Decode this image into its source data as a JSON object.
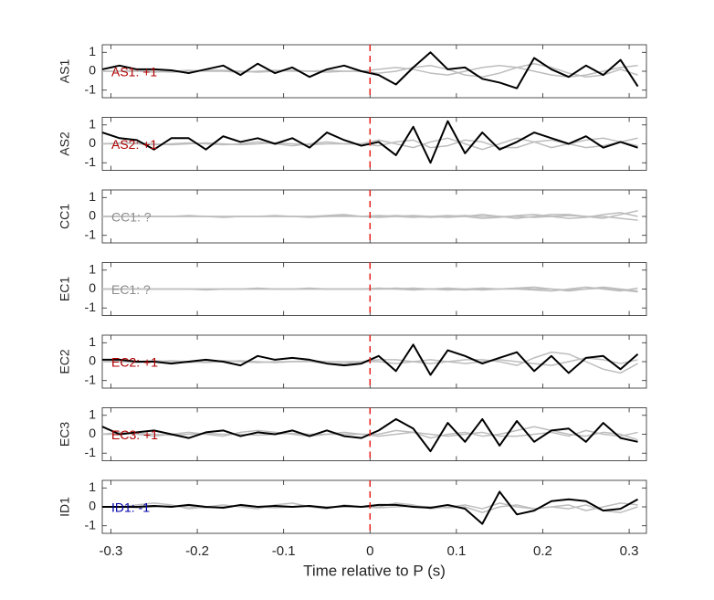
{
  "chart_data": [
    {
      "type": "line",
      "ylabel": "AS1",
      "annotation": {
        "text": "AS1: +1",
        "color": "#b00000"
      },
      "xlim": [
        -0.31,
        0.32
      ],
      "ylim": [
        -1.4,
        1.4
      ],
      "xticks": [
        -0.3,
        -0.2,
        -0.1,
        0,
        0.1,
        0.2,
        0.3
      ],
      "yticks": [
        -1,
        0,
        1
      ],
      "vline": {
        "x": 0,
        "color": "#e8201a"
      },
      "x": [
        -0.31,
        -0.29,
        -0.27,
        -0.25,
        -0.23,
        -0.21,
        -0.19,
        -0.17,
        -0.15,
        -0.13,
        -0.11,
        -0.09,
        -0.07,
        -0.05,
        -0.03,
        -0.01,
        0.01,
        0.03,
        0.05,
        0.07,
        0.09,
        0.11,
        0.13,
        0.15,
        0.17,
        0.19,
        0.21,
        0.23,
        0.25,
        0.27,
        0.29,
        0.31
      ],
      "series": [
        {
          "color": "#bdbdbd",
          "values": [
            0,
            0,
            0.05,
            0,
            -0.05,
            0,
            0.05,
            0.05,
            0,
            -0.05,
            0,
            0.05,
            0,
            -0.05,
            0,
            0,
            0.1,
            0.2,
            0.1,
            -0.1,
            -0.2,
            0,
            0.2,
            0.3,
            0.2,
            0,
            -0.2,
            -0.3,
            -0.2,
            0,
            0.2,
            0.3
          ]
        },
        {
          "color": "#bdbdbd",
          "values": [
            0,
            0,
            0,
            -0.05,
            0,
            0.05,
            0,
            0,
            -0.05,
            0,
            0.05,
            0,
            0,
            0.05,
            0,
            0,
            -0.1,
            0,
            0.2,
            0.3,
            0.1,
            -0.2,
            -0.3,
            -0.1,
            0.2,
            0.4,
            0.2,
            -0.1,
            -0.3,
            -0.2,
            0.1,
            -0.2
          ]
        },
        {
          "color": "#000000",
          "values": [
            0.1,
            0.3,
            0.1,
            0.1,
            0.05,
            -0.1,
            0.1,
            0.3,
            -0.2,
            0.4,
            -0.1,
            0.2,
            -0.3,
            0.1,
            0.3,
            0,
            -0.2,
            -0.7,
            0.2,
            1.0,
            0.1,
            0.2,
            -0.4,
            -0.6,
            -0.9,
            0.7,
            0.1,
            -0.3,
            0.3,
            -0.2,
            0.6,
            -0.8
          ]
        }
      ]
    },
    {
      "type": "line",
      "ylabel": "AS2",
      "annotation": {
        "text": "AS2: +1",
        "color": "#b00000"
      },
      "xlim": [
        -0.31,
        0.32
      ],
      "ylim": [
        -1.4,
        1.4
      ],
      "xticks": [
        -0.3,
        -0.2,
        -0.1,
        0,
        0.1,
        0.2,
        0.3
      ],
      "yticks": [
        -1,
        0,
        1
      ],
      "vline": {
        "x": 0,
        "color": "#e8201a"
      },
      "x": [
        -0.31,
        -0.29,
        -0.27,
        -0.25,
        -0.23,
        -0.21,
        -0.19,
        -0.17,
        -0.15,
        -0.13,
        -0.11,
        -0.09,
        -0.07,
        -0.05,
        -0.03,
        -0.01,
        0.01,
        0.03,
        0.05,
        0.07,
        0.09,
        0.11,
        0.13,
        0.15,
        0.17,
        0.19,
        0.21,
        0.23,
        0.25,
        0.27,
        0.29,
        0.31
      ],
      "series": [
        {
          "color": "#bdbdbd",
          "values": [
            0,
            0.05,
            0,
            -0.05,
            0,
            0.05,
            0,
            -0.05,
            0,
            0.1,
            0,
            -0.1,
            0,
            0.1,
            0,
            0,
            0.2,
            0,
            -0.2,
            0.1,
            0.3,
            0,
            -0.3,
            0,
            0.3,
            0.1,
            -0.2,
            0,
            0.2,
            0.3,
            0.1,
            0.3
          ]
        },
        {
          "color": "#bdbdbd",
          "values": [
            0,
            0,
            0.05,
            0,
            -0.05,
            0,
            0.05,
            0,
            -0.05,
            0,
            0.05,
            0,
            -0.05,
            0,
            0,
            0,
            -0.1,
            0.1,
            0.2,
            -0.2,
            -0.1,
            0.2,
            0.1,
            -0.2,
            -0.2,
            0.1,
            0.2,
            0,
            -0.2,
            -0.1,
            0.1,
            -0.1
          ]
        },
        {
          "color": "#000000",
          "values": [
            0.6,
            0.3,
            0.2,
            -0.3,
            0.3,
            0.3,
            -0.3,
            0.4,
            0.1,
            0.3,
            0,
            0.3,
            -0.2,
            0.6,
            0.2,
            -0.1,
            0.1,
            -0.6,
            0.9,
            -1.0,
            1.2,
            -0.5,
            0.6,
            -0.3,
            0.1,
            0.6,
            0.3,
            0,
            0.4,
            -0.2,
            0.1,
            -0.2
          ]
        }
      ]
    },
    {
      "type": "line",
      "ylabel": "CC1",
      "annotation": {
        "text": "CC1: ?",
        "color": "#8c8c8c"
      },
      "xlim": [
        -0.31,
        0.32
      ],
      "ylim": [
        -1.4,
        1.4
      ],
      "xticks": [
        -0.3,
        -0.2,
        -0.1,
        0,
        0.1,
        0.2,
        0.3
      ],
      "yticks": [
        -1,
        0,
        1
      ],
      "vline": {
        "x": 0,
        "color": "#e8201a"
      },
      "x": [
        -0.31,
        -0.29,
        -0.27,
        -0.25,
        -0.23,
        -0.21,
        -0.19,
        -0.17,
        -0.15,
        -0.13,
        -0.11,
        -0.09,
        -0.07,
        -0.05,
        -0.03,
        -0.01,
        0.01,
        0.03,
        0.05,
        0.07,
        0.09,
        0.11,
        0.13,
        0.15,
        0.17,
        0.19,
        0.21,
        0.23,
        0.25,
        0.27,
        0.29,
        0.31
      ],
      "series": [
        {
          "color": "#bdbdbd",
          "values": [
            0,
            0,
            0,
            0,
            0,
            0.05,
            0,
            0,
            0,
            0,
            0.05,
            0,
            0,
            0.05,
            0.1,
            0,
            -0.05,
            0,
            0.05,
            0,
            -0.05,
            0,
            0.1,
            0,
            -0.1,
            0,
            0.1,
            0.1,
            0,
            -0.1,
            0.1,
            0.3
          ]
        },
        {
          "color": "#bdbdbd",
          "values": [
            0,
            0,
            0,
            0,
            0,
            0,
            0,
            -0.05,
            0,
            0,
            0,
            0,
            -0.05,
            0,
            0.05,
            0,
            0.05,
            0,
            -0.05,
            0,
            0.05,
            0,
            -0.1,
            -0.05,
            0.05,
            0.1,
            0,
            -0.1,
            -0.05,
            0.1,
            0.2,
            0
          ]
        },
        {
          "color": "#bdbdbd",
          "values": [
            0,
            0,
            0,
            0,
            0,
            0,
            0,
            0,
            0,
            0,
            0,
            0,
            0,
            0,
            0,
            0,
            0,
            0.05,
            0,
            -0.05,
            0,
            0.05,
            0,
            0,
            0,
            -0.05,
            0,
            0.05,
            0,
            0,
            -0.1,
            -0.2
          ]
        }
      ]
    },
    {
      "type": "line",
      "ylabel": "EC1",
      "annotation": {
        "text": "EC1: ?",
        "color": "#8c8c8c"
      },
      "xlim": [
        -0.31,
        0.32
      ],
      "ylim": [
        -1.4,
        1.4
      ],
      "xticks": [
        -0.3,
        -0.2,
        -0.1,
        0,
        0.1,
        0.2,
        0.3
      ],
      "yticks": [
        -1,
        0,
        1
      ],
      "vline": {
        "x": 0,
        "color": "#e8201a"
      },
      "x": [
        -0.31,
        -0.29,
        -0.27,
        -0.25,
        -0.23,
        -0.21,
        -0.19,
        -0.17,
        -0.15,
        -0.13,
        -0.11,
        -0.09,
        -0.07,
        -0.05,
        -0.03,
        -0.01,
        0.01,
        0.03,
        0.05,
        0.07,
        0.09,
        0.11,
        0.13,
        0.15,
        0.17,
        0.19,
        0.21,
        0.23,
        0.25,
        0.27,
        0.29,
        0.31
      ],
      "series": [
        {
          "color": "#bdbdbd",
          "values": [
            0,
            0,
            0,
            0,
            0,
            0,
            -0.05,
            0,
            0,
            0.05,
            0,
            0,
            0,
            0,
            0,
            0,
            0.05,
            0,
            -0.05,
            0,
            0.05,
            0,
            -0.05,
            0,
            0.05,
            0.1,
            0,
            -0.1,
            0,
            0.1,
            0,
            -0.1
          ]
        },
        {
          "color": "#bdbdbd",
          "values": [
            0,
            0,
            0,
            0,
            0,
            0,
            0,
            0,
            0,
            0,
            0,
            0,
            0.05,
            0,
            0,
            0,
            0,
            0.05,
            0,
            0,
            -0.05,
            0,
            0.05,
            0,
            0,
            -0.05,
            -0.1,
            0,
            0.1,
            0,
            -0.1,
            0.05
          ]
        },
        {
          "color": "#bdbdbd",
          "values": [
            0,
            0,
            0,
            0,
            0,
            0,
            0,
            0,
            0,
            0,
            0,
            0,
            0,
            0,
            0,
            0,
            0,
            0,
            0.05,
            0,
            0,
            -0.05,
            0,
            0,
            0.05,
            0,
            0,
            -0.05,
            0,
            0.05,
            -0.05,
            -0.15
          ]
        }
      ]
    },
    {
      "type": "line",
      "ylabel": "EC2",
      "annotation": {
        "text": "EC2: +1",
        "color": "#b00000"
      },
      "xlim": [
        -0.31,
        0.32
      ],
      "ylim": [
        -1.4,
        1.4
      ],
      "xticks": [
        -0.3,
        -0.2,
        -0.1,
        0,
        0.1,
        0.2,
        0.3
      ],
      "yticks": [
        -1,
        0,
        1
      ],
      "vline": {
        "x": 0,
        "color": "#e8201a"
      },
      "x": [
        -0.31,
        -0.29,
        -0.27,
        -0.25,
        -0.23,
        -0.21,
        -0.19,
        -0.17,
        -0.15,
        -0.13,
        -0.11,
        -0.09,
        -0.07,
        -0.05,
        -0.03,
        -0.01,
        0.01,
        0.03,
        0.05,
        0.07,
        0.09,
        0.11,
        0.13,
        0.15,
        0.17,
        0.19,
        0.21,
        0.23,
        0.25,
        0.27,
        0.29,
        0.31
      ],
      "series": [
        {
          "color": "#bdbdbd",
          "values": [
            0,
            0,
            0,
            0.05,
            0,
            -0.05,
            0,
            0.05,
            0,
            -0.05,
            0,
            0,
            0,
            -0.1,
            -0.1,
            0,
            0.1,
            0.1,
            0,
            -0.1,
            0,
            0.1,
            0.1,
            0,
            -0.2,
            0.2,
            0.5,
            0.4,
            0,
            -0.4,
            -0.6,
            -0.1
          ]
        },
        {
          "color": "#bdbdbd",
          "values": [
            0,
            0,
            -0.05,
            0,
            0.05,
            0,
            -0.05,
            0,
            0.05,
            0,
            -0.05,
            0,
            0.05,
            0,
            0,
            0,
            0,
            -0.1,
            0,
            0.1,
            0,
            -0.1,
            0,
            0.1,
            0,
            -0.1,
            -0.2,
            0,
            0.2,
            0.1,
            -0.1,
            0.1
          ]
        },
        {
          "color": "#000000",
          "values": [
            0.1,
            0.1,
            0,
            0,
            -0.1,
            0,
            0.1,
            0,
            -0.2,
            0.3,
            0.1,
            0.2,
            0.1,
            -0.1,
            -0.2,
            -0.1,
            0.3,
            -0.5,
            0.9,
            -0.7,
            0.6,
            0.3,
            -0.1,
            0.2,
            0.5,
            -0.5,
            0.3,
            -0.6,
            0.2,
            0.3,
            -0.4,
            0.4
          ]
        }
      ]
    },
    {
      "type": "line",
      "ylabel": "EC3",
      "annotation": {
        "text": "EC3: +1",
        "color": "#b00000"
      },
      "xlim": [
        -0.31,
        0.32
      ],
      "ylim": [
        -1.4,
        1.4
      ],
      "xticks": [
        -0.3,
        -0.2,
        -0.1,
        0,
        0.1,
        0.2,
        0.3
      ],
      "yticks": [
        -1,
        0,
        1
      ],
      "vline": {
        "x": 0,
        "color": "#e8201a"
      },
      "x": [
        -0.31,
        -0.29,
        -0.27,
        -0.25,
        -0.23,
        -0.21,
        -0.19,
        -0.17,
        -0.15,
        -0.13,
        -0.11,
        -0.09,
        -0.07,
        -0.05,
        -0.03,
        -0.01,
        0.01,
        0.03,
        0.05,
        0.07,
        0.09,
        0.11,
        0.13,
        0.15,
        0.17,
        0.19,
        0.21,
        0.23,
        0.25,
        0.27,
        0.29,
        0.31
      ],
      "series": [
        {
          "color": "#bdbdbd",
          "values": [
            0,
            0.1,
            0,
            -0.1,
            0,
            0.1,
            0,
            -0.1,
            0.1,
            0.2,
            0.1,
            0,
            -0.1,
            0,
            0.1,
            0,
            0,
            0.2,
            0.1,
            -0.2,
            0,
            0.1,
            -0.1,
            0,
            0.2,
            0.4,
            0.2,
            0,
            -0.1,
            0.1,
            0,
            -0.3
          ]
        },
        {
          "color": "#bdbdbd",
          "values": [
            0,
            0,
            0.05,
            0,
            -0.05,
            0,
            0.05,
            0,
            0,
            -0.05,
            0,
            0.05,
            0,
            0,
            0,
            0,
            -0.1,
            0,
            0.1,
            0,
            -0.1,
            0,
            0.1,
            -0.1,
            -0.1,
            0,
            0.1,
            -0.1,
            0.2,
            0,
            -0.1,
            0.1
          ]
        },
        {
          "color": "#000000",
          "values": [
            0.4,
            0,
            0.1,
            0.2,
            0,
            -0.2,
            0.1,
            0.2,
            -0.1,
            0.1,
            0,
            0.2,
            -0.1,
            0.2,
            -0.1,
            -0.2,
            0.2,
            0.8,
            0.3,
            -0.9,
            0.6,
            -0.4,
            0.8,
            -0.6,
            0.7,
            -0.4,
            0.2,
            0.3,
            -0.4,
            0.6,
            -0.2,
            -0.4
          ]
        }
      ]
    },
    {
      "type": "line",
      "ylabel": "ID1",
      "annotation": {
        "text": "ID1: -1",
        "color": "#0000a8"
      },
      "xlabel": "Time relative to P (s)",
      "xlim": [
        -0.31,
        0.32
      ],
      "ylim": [
        -1.4,
        1.4
      ],
      "xticks": [
        -0.3,
        -0.2,
        -0.1,
        0,
        0.1,
        0.2,
        0.3
      ],
      "yticks": [
        -1,
        0,
        1
      ],
      "vline": {
        "x": 0,
        "color": "#e8201a"
      },
      "x": [
        -0.31,
        -0.29,
        -0.27,
        -0.25,
        -0.23,
        -0.21,
        -0.19,
        -0.17,
        -0.15,
        -0.13,
        -0.11,
        -0.09,
        -0.07,
        -0.05,
        -0.03,
        -0.01,
        0.01,
        0.03,
        0.05,
        0.07,
        0.09,
        0.11,
        0.13,
        0.15,
        0.17,
        0.19,
        0.21,
        0.23,
        0.25,
        0.27,
        0.29,
        0.31
      ],
      "series": [
        {
          "color": "#bdbdbd",
          "values": [
            0,
            0,
            0.1,
            0.2,
            0.1,
            -0.1,
            0,
            0.1,
            0,
            -0.1,
            0.1,
            0.2,
            0,
            -0.1,
            0.1,
            0,
            0,
            0.2,
            0.1,
            -0.1,
            0,
            0.1,
            -0.1,
            0.2,
            0,
            -0.1,
            0,
            0.1,
            -0.2,
            0,
            0.2,
            0.1
          ]
        },
        {
          "color": "#bdbdbd",
          "values": [
            0,
            0,
            -0.05,
            0,
            0.05,
            0,
            -0.05,
            0,
            0.05,
            0,
            -0.05,
            0,
            0.05,
            0,
            0,
            0,
            -0.05,
            0,
            0.05,
            0,
            -0.05,
            0,
            -0.3,
            0,
            0.1,
            -0.1,
            0,
            -0.1,
            0.1,
            -0.2,
            -0.3,
            0
          ]
        },
        {
          "color": "#000000",
          "values": [
            0,
            0,
            0,
            0.05,
            0,
            0.1,
            0,
            -0.05,
            0.1,
            0,
            0.05,
            0,
            0.05,
            -0.05,
            0.05,
            0,
            0.1,
            0.1,
            0,
            -0.05,
            0.1,
            -0.1,
            -0.9,
            0.8,
            -0.4,
            -0.2,
            0.3,
            0.4,
            0.3,
            -0.2,
            -0.1,
            0.4
          ]
        }
      ]
    }
  ]
}
